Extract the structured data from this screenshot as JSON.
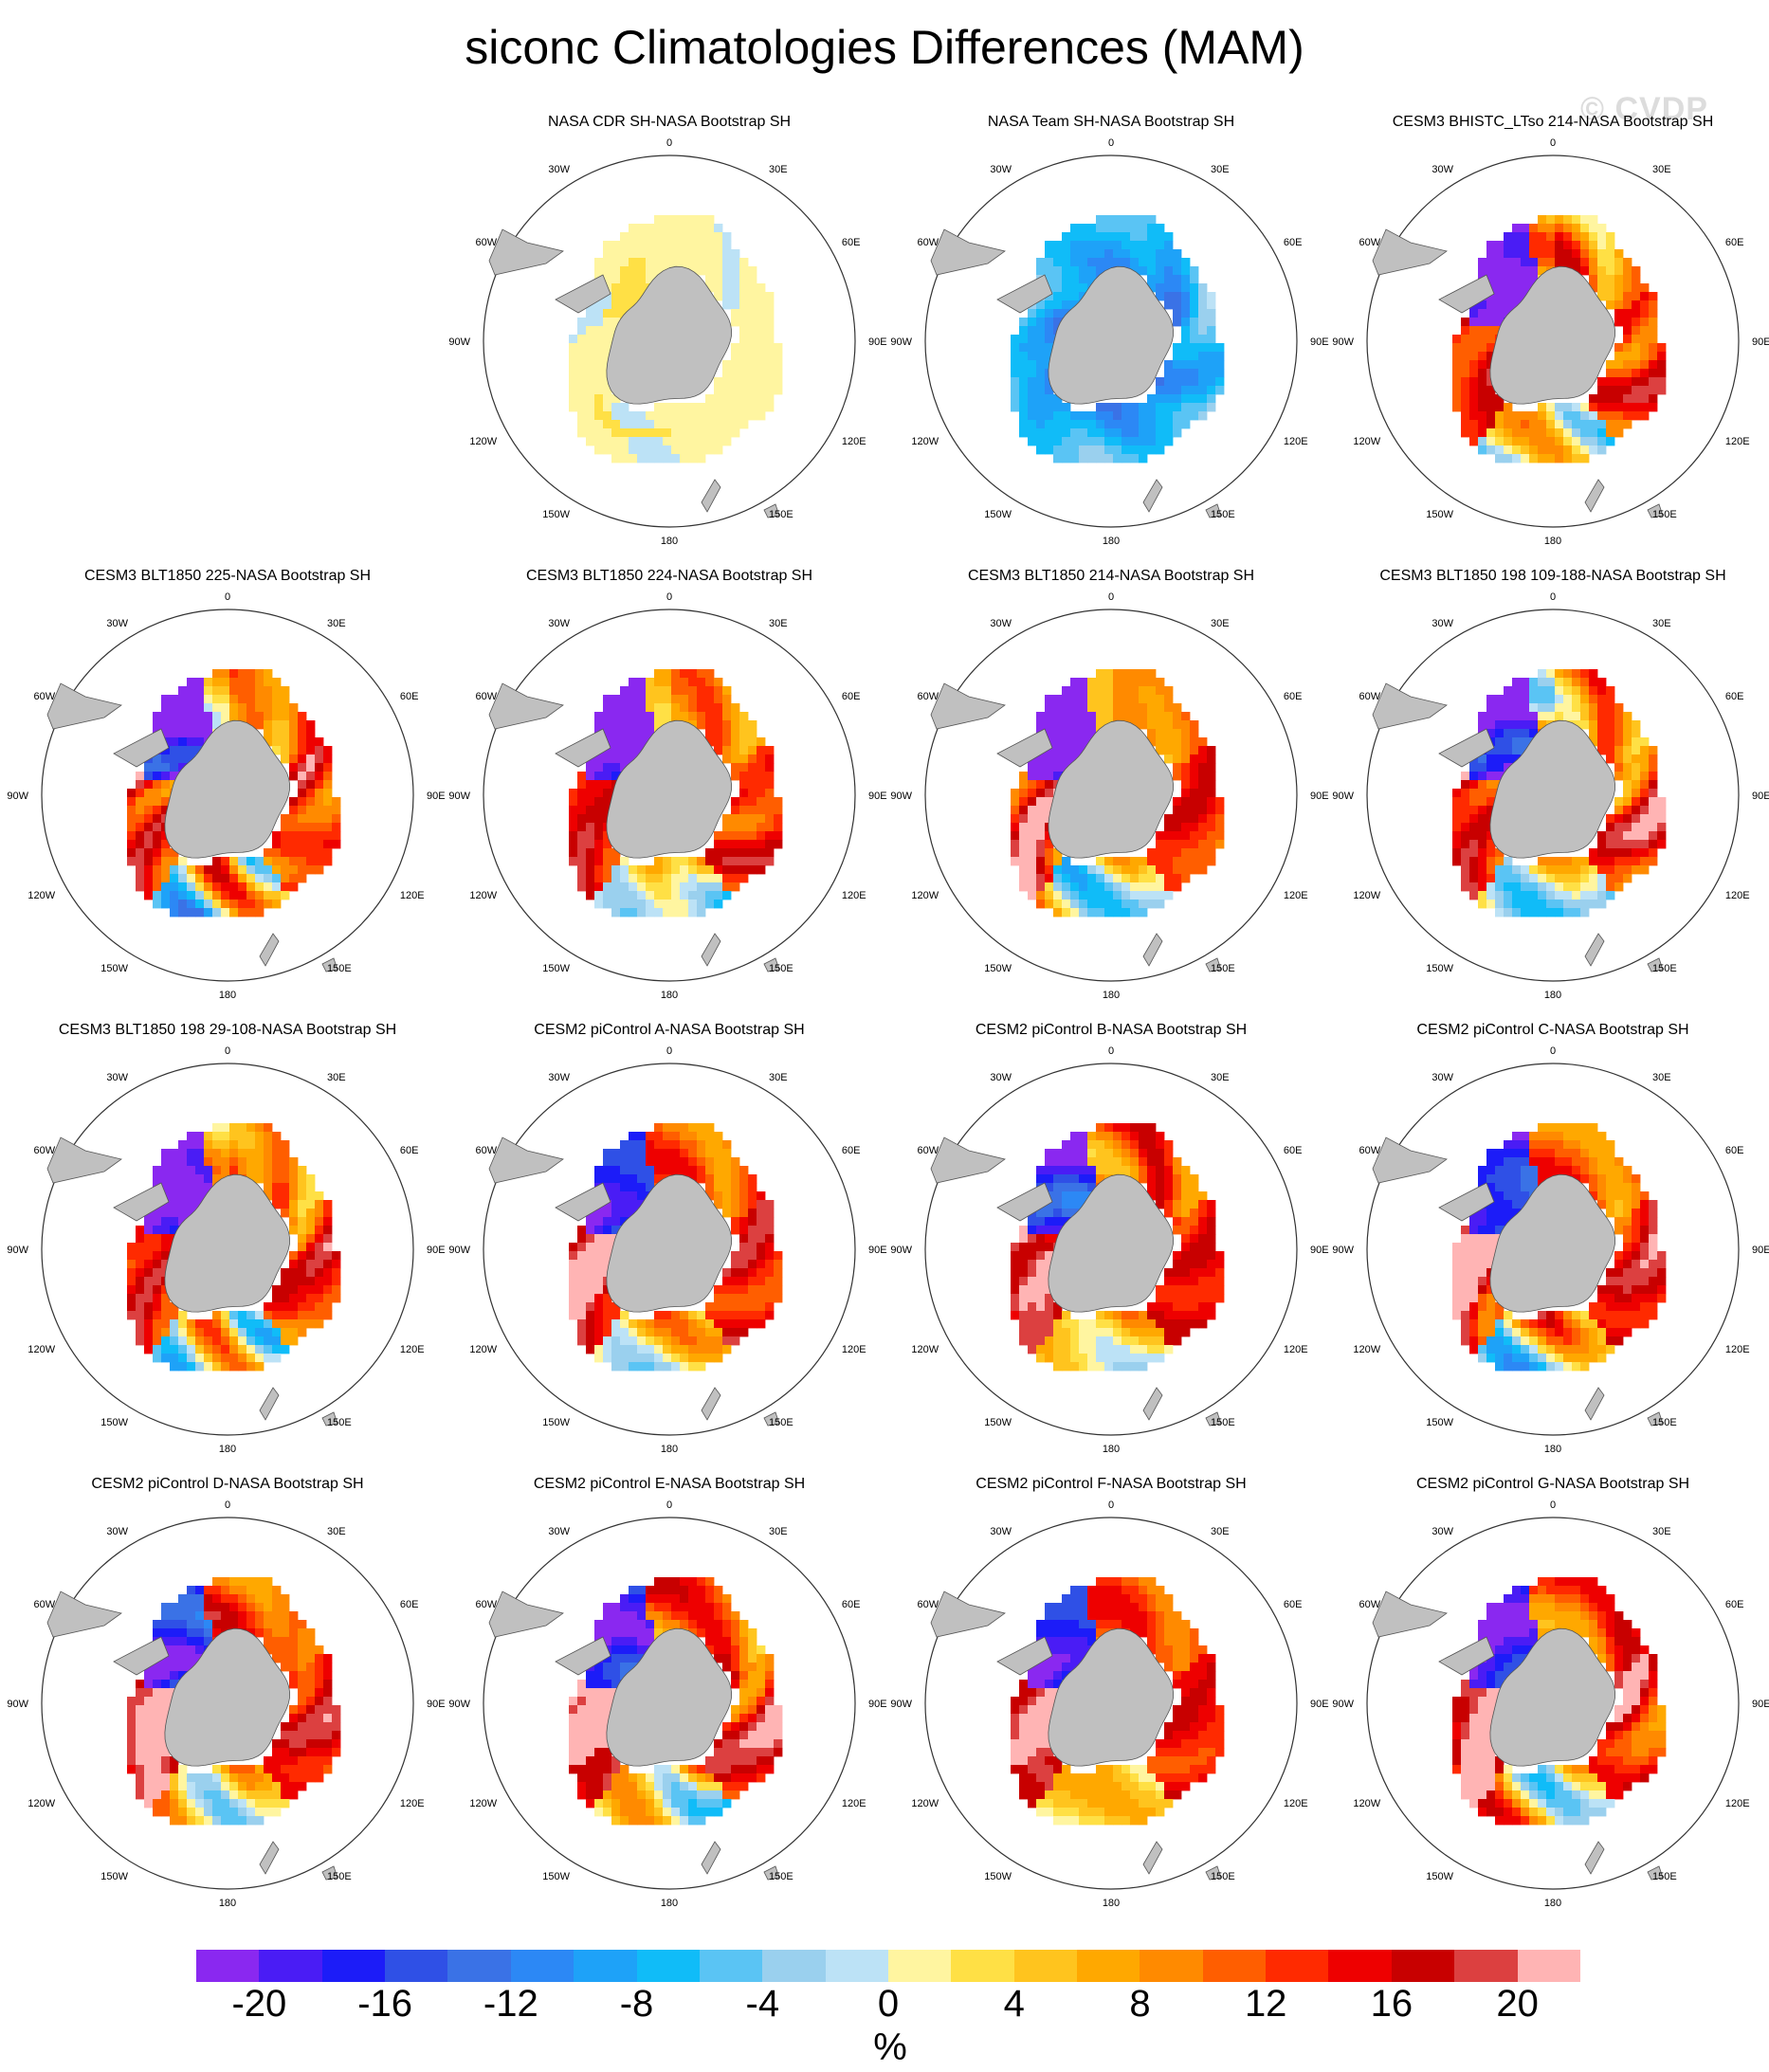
{
  "title": "siconc Climatologies Differences (MAM)",
  "watermark": "© CVDP",
  "map": {
    "lon_labels": [
      "0",
      "30E",
      "60E",
      "90E",
      "120E",
      "150E",
      "180",
      "150W",
      "120W",
      "90W",
      "60W",
      "30W"
    ],
    "colors": {
      "land": "#c0c0c0",
      "coast": "#555555",
      "ring": "#333333"
    }
  },
  "panels": [
    {
      "title": "NASA CDR SH-NASA Bootstrap SH",
      "pattern": "cdr"
    },
    {
      "title": "NASA Team SH-NASA Bootstrap SH",
      "pattern": "team"
    },
    {
      "title": "CESM3 BHISTC_LTso 214-NASA Bootstrap SH",
      "pattern": "model"
    },
    {
      "title": "CESM3 BLT1850 225-NASA Bootstrap SH",
      "pattern": "model"
    },
    {
      "title": "CESM3 BLT1850 224-NASA Bootstrap SH",
      "pattern": "model"
    },
    {
      "title": "CESM3 BLT1850 214-NASA Bootstrap SH",
      "pattern": "model"
    },
    {
      "title": "CESM3 BLT1850 198 109-188-NASA Bootstrap SH",
      "pattern": "model"
    },
    {
      "title": "CESM3 BLT1850 198 29-108-NASA Bootstrap SH",
      "pattern": "model"
    },
    {
      "title": "CESM2 piControl A-NASA Bootstrap SH",
      "pattern": "cesm2"
    },
    {
      "title": "CESM2 piControl B-NASA Bootstrap SH",
      "pattern": "cesm2"
    },
    {
      "title": "CESM2 piControl C-NASA Bootstrap SH",
      "pattern": "cesm2"
    },
    {
      "title": "CESM2 piControl D-NASA Bootstrap SH",
      "pattern": "cesm2"
    },
    {
      "title": "CESM2 piControl E-NASA Bootstrap SH",
      "pattern": "cesm2"
    },
    {
      "title": "CESM2 piControl F-NASA Bootstrap SH",
      "pattern": "cesm2"
    },
    {
      "title": "CESM2 piControl G-NASA Bootstrap SH",
      "pattern": "cesm2"
    }
  ],
  "colorbar": {
    "colors": [
      "#8a28f0",
      "#4a1cf5",
      "#1c1cf8",
      "#2f50e6",
      "#3a72e6",
      "#2c88f5",
      "#1ea2f8",
      "#10bcf8",
      "#5ac4f4",
      "#9ad0ee",
      "#bce2f6",
      "#fff5a0",
      "#ffe045",
      "#ffc41e",
      "#ffa800",
      "#ff8a00",
      "#ff5e00",
      "#ff2a00",
      "#ee0000",
      "#c80000",
      "#dc4040",
      "#ffb4b4"
    ],
    "ticks": [
      -20,
      -16,
      -12,
      -8,
      -4,
      0,
      4,
      8,
      12,
      16,
      20
    ],
    "unit": "%"
  }
}
